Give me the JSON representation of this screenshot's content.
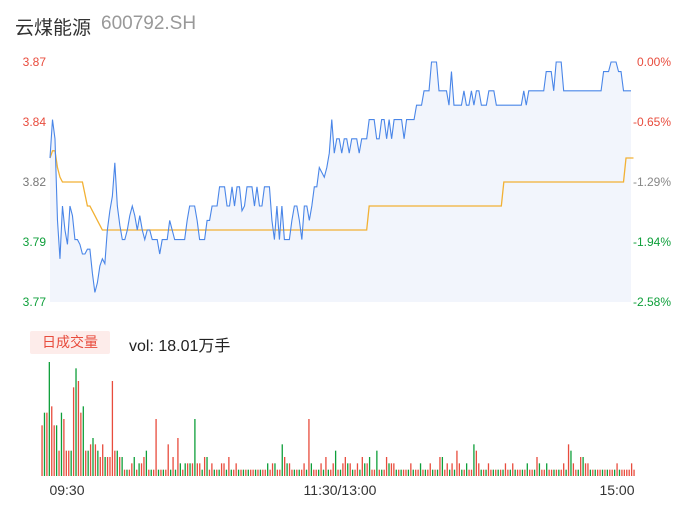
{
  "header": {
    "name": "云煤能源",
    "code": "600792.SH"
  },
  "volume": {
    "tag": "日成交量",
    "label": "vol: ",
    "value": "18.01万手"
  },
  "colors": {
    "up": "#e84c3d",
    "down": "#0e9f3a",
    "price_line": "#4a86e8",
    "avg_line": "#f2b134",
    "area": "#f2f5fc"
  },
  "chart_data": {
    "type": "line",
    "price_axis": {
      "ticks": [
        "3.87",
        "3.84",
        "3.82",
        "3.79",
        "3.77"
      ],
      "ylim": [
        3.77,
        3.87
      ]
    },
    "pct_axis": {
      "ticks": [
        "0.00%",
        "-0.65%",
        "-1.29%",
        "-1.94%",
        "-2.58%"
      ]
    },
    "x_ticks": [
      "09:30",
      "11:30/13:00",
      "15:00"
    ],
    "series": [
      {
        "type": "line",
        "values": [
          3.83,
          3.846,
          3.838,
          3.804,
          3.788,
          3.81,
          3.8,
          3.794,
          3.81,
          3.806,
          3.796,
          3.796,
          3.794,
          3.79,
          3.79,
          3.792,
          3.792,
          3.782,
          3.774,
          3.778,
          3.785,
          3.788,
          3.786,
          3.8,
          3.808,
          3.814,
          3.828,
          3.81,
          3.802,
          3.796,
          3.796,
          3.8,
          3.806,
          3.81,
          3.806,
          3.8,
          3.806,
          3.8,
          3.796,
          3.8,
          3.8,
          3.796,
          3.796,
          3.796,
          3.79,
          3.796,
          3.796,
          3.796,
          3.804,
          3.8,
          3.796,
          3.796,
          3.796,
          3.796,
          3.796,
          3.804,
          3.81,
          3.81,
          3.81,
          3.804,
          3.796,
          3.796,
          3.796,
          3.804,
          3.804,
          3.81,
          3.81,
          3.81,
          3.818,
          3.818,
          3.818,
          3.81,
          3.81,
          3.818,
          3.81,
          3.818,
          3.818,
          3.808,
          3.81,
          3.818,
          3.818,
          3.818,
          3.81,
          3.818,
          3.81,
          3.81,
          3.818,
          3.818,
          3.818,
          3.804,
          3.796,
          3.81,
          3.796,
          3.81,
          3.796,
          3.796,
          3.796,
          3.804,
          3.81,
          3.81,
          3.804,
          3.796,
          3.81,
          3.81,
          3.804,
          3.81,
          3.818,
          3.818,
          3.826,
          3.824,
          3.822,
          3.826,
          3.832,
          3.846,
          3.832,
          3.838,
          3.838,
          3.832,
          3.838,
          3.838,
          3.832,
          3.838,
          3.838,
          3.838,
          3.832,
          3.838,
          3.838,
          3.838,
          3.846,
          3.846,
          3.846,
          3.838,
          3.838,
          3.846,
          3.846,
          3.838,
          3.846,
          3.838,
          3.846,
          3.846,
          3.846,
          3.846,
          3.838,
          3.846,
          3.846,
          3.846,
          3.846,
          3.852,
          3.852,
          3.852,
          3.858,
          3.858,
          3.858,
          3.87,
          3.87,
          3.87,
          3.858,
          3.858,
          3.858,
          3.858,
          3.852,
          3.866,
          3.852,
          3.852,
          3.852,
          3.852,
          3.858,
          3.852,
          3.852,
          3.858,
          3.852,
          3.858,
          3.858,
          3.852,
          3.852,
          3.852,
          3.858,
          3.858,
          3.858,
          3.852,
          3.852,
          3.852,
          3.852,
          3.852,
          3.852,
          3.852,
          3.852,
          3.852,
          3.852,
          3.852,
          3.858,
          3.852,
          3.858,
          3.858,
          3.858,
          3.858,
          3.858,
          3.858,
          3.858,
          3.866,
          3.866,
          3.866,
          3.858,
          3.87,
          3.87,
          3.87,
          3.858,
          3.858,
          3.858,
          3.858,
          3.858,
          3.858,
          3.858,
          3.858,
          3.858,
          3.858,
          3.858,
          3.858,
          3.858,
          3.858,
          3.858,
          3.858,
          3.866,
          3.866,
          3.866,
          3.87,
          3.87,
          3.87,
          3.866,
          3.866,
          3.858,
          3.858,
          3.858,
          3.858
        ]
      },
      {
        "type": "line",
        "values": [
          3.83,
          3.833,
          3.833,
          3.826,
          3.822,
          3.82,
          3.82,
          3.82,
          3.82,
          3.82,
          3.82,
          3.82,
          3.82,
          3.82,
          3.815,
          3.81,
          3.81,
          3.808,
          3.806,
          3.804,
          3.802,
          3.8,
          3.8,
          3.8,
          3.8,
          3.8,
          3.8,
          3.8,
          3.8,
          3.8,
          3.8,
          3.8,
          3.8,
          3.8,
          3.8,
          3.8,
          3.8,
          3.8,
          3.8,
          3.8,
          3.8,
          3.8,
          3.8,
          3.8,
          3.8,
          3.8,
          3.8,
          3.8,
          3.8,
          3.8,
          3.8,
          3.8,
          3.8,
          3.8,
          3.8,
          3.8,
          3.8,
          3.8,
          3.8,
          3.8,
          3.8,
          3.8,
          3.8,
          3.8,
          3.8,
          3.8,
          3.8,
          3.8,
          3.8,
          3.8,
          3.8,
          3.8,
          3.8,
          3.8,
          3.8,
          3.8,
          3.8,
          3.8,
          3.8,
          3.8,
          3.8,
          3.8,
          3.8,
          3.8,
          3.8,
          3.8,
          3.8,
          3.8,
          3.8,
          3.8,
          3.8,
          3.8,
          3.8,
          3.8,
          3.8,
          3.8,
          3.8,
          3.8,
          3.8,
          3.8,
          3.8,
          3.8,
          3.8,
          3.8,
          3.8,
          3.8,
          3.8,
          3.8,
          3.8,
          3.8,
          3.8,
          3.8,
          3.8,
          3.8,
          3.8,
          3.8,
          3.8,
          3.8,
          3.8,
          3.8,
          3.8,
          3.8,
          3.8,
          3.8,
          3.8,
          3.8,
          3.8,
          3.8,
          3.81,
          3.81,
          3.81,
          3.81,
          3.81,
          3.81,
          3.81,
          3.81,
          3.81,
          3.81,
          3.81,
          3.81,
          3.81,
          3.81,
          3.81,
          3.81,
          3.81,
          3.81,
          3.81,
          3.81,
          3.81,
          3.81,
          3.81,
          3.81,
          3.81,
          3.81,
          3.81,
          3.81,
          3.81,
          3.81,
          3.81,
          3.81,
          3.81,
          3.81,
          3.81,
          3.81,
          3.81,
          3.81,
          3.81,
          3.81,
          3.81,
          3.81,
          3.81,
          3.81,
          3.81,
          3.81,
          3.81,
          3.81,
          3.81,
          3.81,
          3.81,
          3.81,
          3.81,
          3.81,
          3.82,
          3.82,
          3.82,
          3.82,
          3.82,
          3.82,
          3.82,
          3.82,
          3.82,
          3.82,
          3.82,
          3.82,
          3.82,
          3.82,
          3.82,
          3.82,
          3.82,
          3.82,
          3.82,
          3.82,
          3.82,
          3.82,
          3.82,
          3.82,
          3.82,
          3.82,
          3.82,
          3.82,
          3.82,
          3.82,
          3.82,
          3.82,
          3.82,
          3.82,
          3.82,
          3.82,
          3.82,
          3.82,
          3.82,
          3.82,
          3.82,
          3.82,
          3.82,
          3.82,
          3.82,
          3.82,
          3.82,
          3.82,
          3.82,
          3.83,
          3.83,
          3.83,
          3.83
        ]
      }
    ],
    "volumes": [
      8,
      10,
      10,
      18,
      11,
      8,
      8,
      4,
      10,
      9,
      4,
      4,
      4,
      14,
      17,
      15,
      10,
      11,
      4,
      4,
      5,
      6,
      5,
      4,
      3,
      5,
      3,
      3,
      3,
      15,
      4,
      4,
      3,
      3,
      1,
      1,
      1,
      2,
      3,
      1,
      2,
      2,
      3,
      4,
      1,
      1,
      1,
      9,
      1,
      1,
      1,
      1,
      5,
      1,
      3,
      1,
      6,
      2,
      1,
      2,
      2,
      2,
      2,
      9,
      2,
      2,
      1,
      3,
      3,
      1,
      2,
      1,
      1,
      1,
      2,
      2,
      1,
      3,
      1,
      1,
      2,
      1,
      1,
      1,
      1,
      1,
      1,
      1,
      1,
      1,
      1,
      1,
      1,
      2,
      1,
      2,
      2,
      1,
      1,
      5,
      3,
      2,
      2,
      1,
      1,
      1,
      1,
      1,
      2,
      1,
      9,
      2,
      1,
      1,
      1,
      2,
      1,
      3,
      1,
      1,
      2,
      4,
      1,
      1,
      2,
      3,
      2,
      2,
      1,
      1,
      2,
      1,
      3,
      2,
      2,
      3,
      1,
      1,
      4,
      1,
      1,
      1,
      3,
      2,
      2,
      2,
      1,
      1,
      1,
      1,
      1,
      1,
      2,
      1,
      1,
      1,
      2,
      1,
      1,
      1,
      2,
      1,
      1,
      1,
      3,
      3,
      1,
      2,
      1,
      2,
      1,
      4,
      2,
      1,
      1,
      2,
      1,
      1,
      5,
      4,
      2,
      1,
      1,
      1,
      2,
      1,
      1,
      1,
      1,
      1,
      1,
      2,
      1,
      1,
      2,
      1,
      1,
      1,
      1,
      1,
      2,
      1,
      1,
      1,
      3,
      2,
      1,
      1,
      2,
      1,
      1,
      1,
      1,
      1,
      1,
      2,
      1,
      5,
      4,
      2,
      1,
      1,
      3,
      3,
      2,
      2,
      1,
      1,
      1,
      1,
      1,
      1,
      1,
      1,
      1,
      1,
      1,
      2,
      1,
      1,
      1,
      1,
      1,
      2,
      1
    ],
    "volume_dirs": [
      "u",
      "d",
      "u",
      "d",
      "u",
      "u",
      "d",
      "u",
      "d",
      "u",
      "u",
      "u",
      "d",
      "u",
      "d",
      "u",
      "u",
      "d",
      "u",
      "d",
      "u",
      "d",
      "u",
      "d",
      "u",
      "u",
      "d",
      "u",
      "u",
      "u",
      "u",
      "d",
      "u",
      "d",
      "u",
      "d",
      "u",
      "u",
      "d",
      "u",
      "d",
      "u",
      "u",
      "d",
      "u",
      "d",
      "u",
      "u",
      "d",
      "u",
      "d",
      "u",
      "u",
      "d",
      "u",
      "d",
      "u",
      "d",
      "u",
      "d",
      "u",
      "d",
      "u",
      "d",
      "u",
      "u",
      "d",
      "u",
      "d",
      "u",
      "u",
      "d",
      "u",
      "d",
      "u",
      "u",
      "d",
      "u",
      "d",
      "u",
      "u",
      "d",
      "u",
      "d",
      "u",
      "d",
      "u",
      "u",
      "d",
      "u",
      "d",
      "u",
      "u",
      "d",
      "u",
      "u",
      "d",
      "u",
      "u",
      "d",
      "u",
      "d",
      "u",
      "u",
      "d",
      "u",
      "d",
      "u",
      "u",
      "d",
      "u",
      "d",
      "u",
      "u",
      "d",
      "u",
      "d",
      "u",
      "d",
      "u",
      "u",
      "d",
      "u",
      "d",
      "u",
      "u",
      "d",
      "u",
      "d",
      "u",
      "u",
      "d",
      "u",
      "d",
      "u",
      "d",
      "u",
      "u",
      "d",
      "u",
      "d",
      "u",
      "u",
      "d",
      "u",
      "u",
      "d",
      "u",
      "d",
      "u",
      "u",
      "d",
      "u",
      "d",
      "u",
      "u",
      "d",
      "u",
      "d",
      "u",
      "u",
      "d",
      "u",
      "d",
      "u",
      "d",
      "u",
      "u",
      "d",
      "u",
      "d",
      "u",
      "u",
      "d",
      "u",
      "d",
      "u",
      "u",
      "d",
      "u",
      "u",
      "d",
      "u",
      "d",
      "u",
      "u",
      "d",
      "u",
      "d",
      "u",
      "d",
      "u",
      "u",
      "d",
      "u",
      "d",
      "u",
      "u",
      "d",
      "u",
      "d",
      "u",
      "u",
      "d",
      "u",
      "d",
      "u",
      "u",
      "d",
      "u",
      "u",
      "d",
      "u",
      "d",
      "u",
      "u",
      "d",
      "u",
      "d",
      "u",
      "u",
      "d",
      "u",
      "d",
      "u",
      "u",
      "d",
      "u",
      "d",
      "u",
      "u",
      "d",
      "u",
      "d",
      "u",
      "u",
      "d",
      "u",
      "d",
      "u",
      "u"
    ]
  }
}
